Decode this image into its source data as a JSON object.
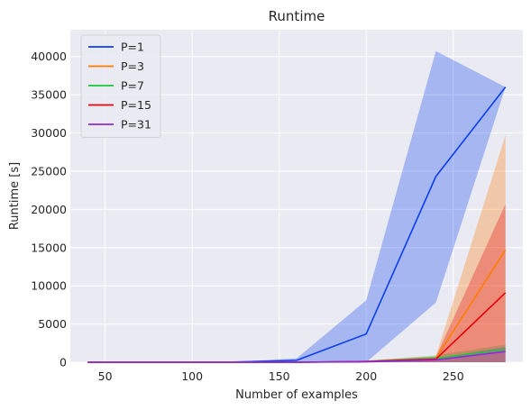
{
  "chart_data": {
    "type": "line",
    "title": "Runtime",
    "xlabel": "Number of examples",
    "ylabel": "Runtime [s]",
    "xlim": [
      30,
      290
    ],
    "ylim": [
      0,
      43500
    ],
    "xticks": [
      50,
      100,
      150,
      200,
      250
    ],
    "yticks": [
      0,
      5000,
      10000,
      15000,
      20000,
      25000,
      30000,
      35000,
      40000
    ],
    "grid": true,
    "legend_position": "top-left",
    "x": [
      40,
      80,
      120,
      160,
      200,
      240,
      280
    ],
    "series": [
      {
        "name": "P=1",
        "color": "#0b3ff0",
        "values": [
          0,
          0,
          0,
          250,
          3700,
          24300,
          36000
        ],
        "lower": [
          0,
          0,
          0,
          0,
          0,
          7800,
          36000
        ],
        "upper": [
          0,
          0,
          0,
          500,
          8100,
          40700,
          36000
        ]
      },
      {
        "name": "P=3",
        "color": "#ff7c00",
        "values": [
          0,
          0,
          0,
          0,
          100,
          500,
          14700
        ],
        "lower": [
          0,
          0,
          0,
          0,
          0,
          0,
          0
        ],
        "upper": [
          0,
          0,
          0,
          0,
          200,
          800,
          29700
        ]
      },
      {
        "name": "P=7",
        "color": "#1ac938",
        "values": [
          0,
          0,
          0,
          0,
          100,
          500,
          1700
        ],
        "lower": [
          0,
          0,
          0,
          0,
          0,
          0,
          0
        ],
        "upper": [
          0,
          0,
          0,
          0,
          200,
          900,
          2300
        ]
      },
      {
        "name": "P=15",
        "color": "#e8000b",
        "values": [
          0,
          0,
          0,
          0,
          100,
          400,
          9100
        ],
        "lower": [
          0,
          0,
          0,
          0,
          0,
          0,
          0
        ],
        "upper": [
          0,
          0,
          0,
          0,
          200,
          700,
          20700
        ]
      },
      {
        "name": "P=31",
        "color": "#8b2be2",
        "values": [
          0,
          0,
          0,
          0,
          50,
          300,
          1400
        ],
        "lower": [
          0,
          0,
          0,
          0,
          0,
          0,
          0
        ],
        "upper": [
          0,
          0,
          0,
          0,
          100,
          500,
          2000
        ]
      }
    ]
  }
}
